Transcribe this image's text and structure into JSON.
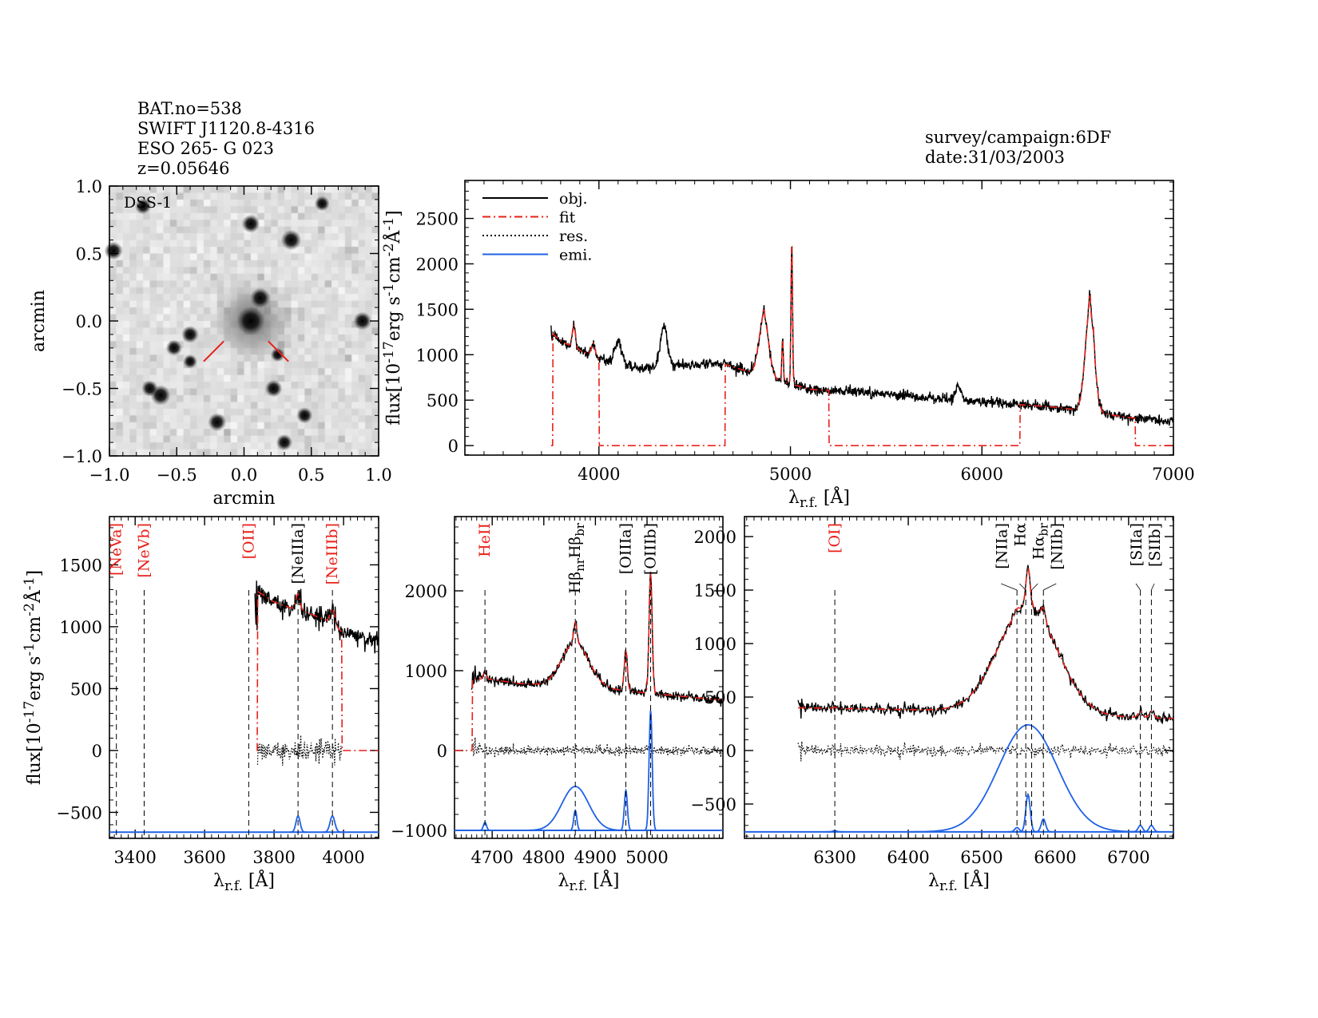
{
  "header": {
    "info": [
      "BAT.no=538",
      "SWIFT J1120.8-4316",
      "ESO 265- G 023",
      "z=0.05646"
    ],
    "survey": "survey/campaign:6DF",
    "date": "date:31/03/2003"
  },
  "colors": {
    "obj": "#000000",
    "fit": "#e8201a",
    "res": "#000000",
    "emi": "#1f62e6"
  },
  "chart_data": [
    {
      "type": "image",
      "id": "img",
      "label": "DSS-1",
      "xlabel": "arcmin",
      "ylabel": "arcmin",
      "xlim": [
        -1,
        1
      ],
      "ylim": [
        -1,
        1
      ],
      "xticks": [
        -1,
        -0.5,
        0,
        0.5,
        1
      ],
      "yticks": [
        -1,
        -0.5,
        0,
        0.5,
        1
      ],
      "minor": 0.1,
      "decimals": 1,
      "sources": [
        [
          0.05,
          0.0,
          1.0
        ],
        [
          0.12,
          0.17,
          0.6
        ],
        [
          0.35,
          0.6,
          0.6
        ],
        [
          0.05,
          0.72,
          0.5
        ],
        [
          -0.4,
          -0.1,
          0.45
        ],
        [
          -0.52,
          -0.2,
          0.4
        ],
        [
          0.88,
          0.0,
          0.5
        ],
        [
          -0.62,
          -0.55,
          0.6
        ],
        [
          -0.7,
          -0.5,
          0.4
        ],
        [
          0.22,
          -0.5,
          0.45
        ],
        [
          -0.2,
          -0.75,
          0.5
        ],
        [
          0.45,
          -0.7,
          0.4
        ],
        [
          0.3,
          -0.9,
          0.4
        ],
        [
          -0.97,
          0.52,
          0.5
        ],
        [
          -0.75,
          0.85,
          0.4
        ],
        [
          0.58,
          0.87,
          0.35
        ],
        [
          -0.4,
          -0.3,
          0.3
        ],
        [
          0.25,
          -0.25,
          0.3
        ]
      ],
      "markers": [
        [
          -0.15,
          -0.15,
          -0.3,
          -0.3
        ],
        [
          0.18,
          -0.15,
          0.33,
          -0.3
        ]
      ]
    },
    {
      "type": "line",
      "id": "full",
      "xlabel": "λ_{r.f.} [Å]",
      "ylabel": "flux[10^{-17}erg s^{-1}cm^{-2}Å^{-1}]",
      "xlim": [
        3300,
        7000
      ],
      "ylim": [
        -105,
        2918
      ],
      "xticks": [
        4000,
        5000,
        6000,
        7000
      ],
      "yticks": [
        0,
        500,
        1000,
        1500,
        2000,
        2500
      ],
      "xminor": 100,
      "yminor": 100,
      "legend": [
        {
          "label": "obj.",
          "style": "obj"
        },
        {
          "label": "fit",
          "style": "fit"
        },
        {
          "label": "res.",
          "style": "res"
        },
        {
          "label": "emi.",
          "style": "emi"
        }
      ],
      "obj_range": [
        3750,
        7000
      ],
      "fit_range": [
        3750,
        7000
      ],
      "fit_windows": [
        [
          3760,
          4000
        ],
        [
          4660,
          5200
        ],
        [
          6200,
          6800
        ]
      ],
      "continuum": [
        [
          3750,
          1250
        ],
        [
          3800,
          1150
        ],
        [
          4000,
          950
        ],
        [
          4200,
          850
        ],
        [
          4500,
          900
        ],
        [
          4650,
          900
        ],
        [
          4800,
          800
        ],
        [
          5100,
          620
        ],
        [
          5400,
          580
        ],
        [
          6000,
          480
        ],
        [
          6400,
          420
        ],
        [
          6800,
          300
        ],
        [
          7000,
          260
        ]
      ],
      "lines": [
        [
          3869,
          250,
          8
        ],
        [
          3970,
          150,
          10
        ],
        [
          4102,
          250,
          20
        ],
        [
          4340,
          450,
          18
        ],
        [
          4861,
          650,
          25
        ],
        [
          4861,
          100,
          4
        ],
        [
          4959,
          450,
          4
        ],
        [
          5007,
          1550,
          4
        ],
        [
          5876,
          150,
          15
        ],
        [
          6563,
          1100,
          24
        ],
        [
          6563,
          200,
          4
        ],
        [
          6584,
          100,
          4
        ]
      ],
      "noise": 28,
      "step": 2
    },
    {
      "type": "line",
      "id": "bl",
      "xlabel": "λ_{r.f.} [Å]",
      "ylabel": "flux[10^{-17}erg s^{-1}cm^{-2}Å^{-1}]",
      "xlim": [
        3326,
        4101
      ],
      "ylim": [
        -710,
        1890
      ],
      "xticks": [
        3400,
        3600,
        3800,
        4000
      ],
      "yticks": [
        -500,
        0,
        500,
        1000,
        1500
      ],
      "xminor": 20,
      "yminor": 100,
      "obj_range": [
        3745,
        4101
      ],
      "fit_range": [
        3750,
        4101
      ],
      "fit_windows": [
        [
          3752,
          3995
        ]
      ],
      "continuum": [
        [
          3745,
          1300
        ],
        [
          3800,
          1200
        ],
        [
          3850,
          1150
        ],
        [
          3900,
          1110
        ],
        [
          3950,
          1050
        ],
        [
          4000,
          950
        ],
        [
          4101,
          880
        ]
      ],
      "lines": [
        [
          3869,
          130,
          6
        ],
        [
          3968,
          130,
          7
        ]
      ],
      "noise": 40,
      "step": 1.5,
      "emi_offset": -660,
      "markers": [
        {
          "wl": 3346,
          "label": "[NeVa]",
          "color": "fit"
        },
        {
          "wl": 3426,
          "label": "[NeVb]",
          "color": "fit"
        },
        {
          "wl": 3727,
          "label": "[OII]",
          "color": "fit"
        },
        {
          "wl": 3869,
          "label": "[NeIIIa]",
          "color": "obj"
        },
        {
          "wl": 3968,
          "label": "[NeIIIb]",
          "color": "fit"
        }
      ]
    },
    {
      "type": "line",
      "id": "bm",
      "xlabel": "λ_{r.f.} [Å]",
      "ylabel": "",
      "xlim": [
        4627,
        5147
      ],
      "ylim": [
        -1100,
        2930
      ],
      "xticks": [
        4700,
        4800,
        4900,
        5000
      ],
      "yticks": [
        -1000,
        0,
        1000,
        2000
      ],
      "xminor": 10,
      "yminor": 200,
      "obj_range": [
        4660,
        5147
      ],
      "fit_range": [
        4627,
        5147
      ],
      "fit_windows": [
        [
          4662,
          5147
        ]
      ],
      "continuum": [
        [
          4660,
          900
        ],
        [
          4700,
          890
        ],
        [
          4750,
          840
        ],
        [
          4800,
          820
        ],
        [
          4900,
          790
        ],
        [
          5000,
          720
        ],
        [
          5147,
          630
        ]
      ],
      "lines": [
        [
          4686,
          100,
          3
        ],
        [
          4861,
          550,
          26
        ],
        [
          4861,
          250,
          3
        ],
        [
          4959,
          500,
          3
        ],
        [
          5007,
          1500,
          3
        ]
      ],
      "noise": 30,
      "step": 1,
      "emi_offset": -1000,
      "markers": [
        {
          "wl": 4686,
          "label": "HeII",
          "color": "fit"
        },
        {
          "wl": 4861,
          "label": "Hβ_{nr}Hβ_{br}",
          "color": "obj"
        },
        {
          "wl": 4959,
          "label": "[OIIIa]",
          "color": "obj"
        },
        {
          "wl": 5007,
          "label": "[OIIIb]",
          "color": "obj"
        }
      ]
    },
    {
      "type": "line",
      "id": "br",
      "xlabel": "λ_{r.f.} [Å]",
      "ylabel": "",
      "xlim": [
        6177,
        6761
      ],
      "ylim": [
        -821,
        2187
      ],
      "xticks": [
        6300,
        6400,
        6500,
        6600,
        6700
      ],
      "yticks": [
        -500,
        0,
        500,
        1000,
        1500,
        2000
      ],
      "xminor": 10,
      "yminor": 100,
      "obj_range": [
        6250,
        6761
      ],
      "fit_range": [
        6250,
        6761
      ],
      "fit_windows": [
        [
          6250,
          6761
        ]
      ],
      "continuum": [
        [
          6250,
          400
        ],
        [
          6500,
          370
        ],
        [
          6650,
          320
        ],
        [
          6761,
          300
        ]
      ],
      "lines": [
        [
          6300,
          10,
          3
        ],
        [
          6548,
          40,
          3
        ],
        [
          6563,
          1000,
          40
        ],
        [
          6563,
          350,
          3
        ],
        [
          6584,
          120,
          3
        ],
        [
          6716,
          60,
          3
        ],
        [
          6731,
          60,
          3
        ]
      ],
      "noise": 25,
      "step": 1,
      "emi_offset": -760,
      "markers": [
        {
          "wl": 6300,
          "label": "[OI]",
          "color": "fit"
        },
        {
          "wl": 6548,
          "label": "[NIIa]",
          "color": "obj"
        },
        {
          "wl": 6560,
          "label": "Hα",
          "color": "obj"
        },
        {
          "wl": 6568,
          "label": "Hα_{br}",
          "color": "obj"
        },
        {
          "wl": 6584,
          "label": "[NIIb]",
          "color": "obj"
        },
        {
          "wl": 6716,
          "label": "[SIIa]",
          "color": "obj"
        },
        {
          "wl": 6731,
          "label": "[SIIb]",
          "color": "obj"
        }
      ]
    }
  ]
}
